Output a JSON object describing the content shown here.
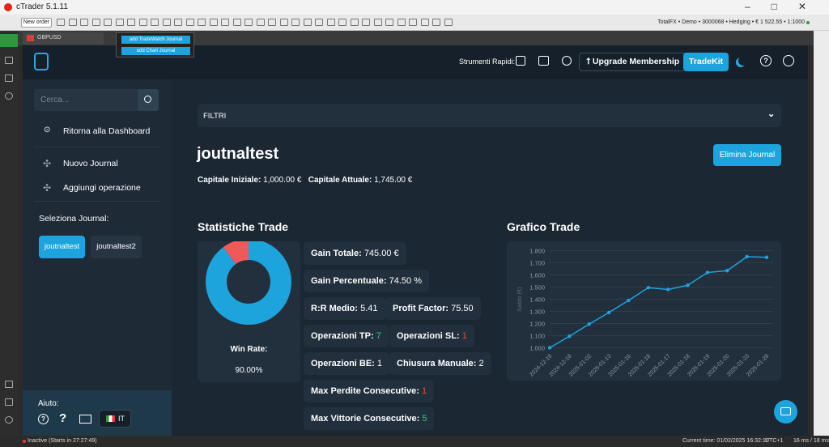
{
  "window": {
    "title": "cTrader 5.1.11"
  },
  "toolbar": {
    "new_order": "New order",
    "account": "TotalFX • Demo • 3000068 • Hedging • € 1 522.55 • 1:1000"
  },
  "tab": {
    "symbol": "GBPUSD"
  },
  "popup": {
    "items": [
      "add TradeWatch Journal",
      "add Chart Journal"
    ]
  },
  "header": {
    "quick_tools": "Strumenti Rapidi:",
    "upgrade": "Upgrade Membership",
    "tradekit": "TradeKit"
  },
  "sidebar": {
    "search": "Cerca...",
    "menu": [
      "Ritorna alla Dashboard",
      "Nuovo Journal",
      "Aggiungi operazione"
    ],
    "select_label": "Seleziona Journal:",
    "journals": [
      "joutnaltest",
      "joutnaltest2"
    ],
    "help": "Aiuto:",
    "language": "IT"
  },
  "main": {
    "filters": "FILTRI",
    "journal_title": "joutnaltest",
    "delete": "Elimina Journal",
    "capital": [
      {
        "label": "Capitale Iniziale:",
        "value": "1,000.00 €"
      },
      {
        "label": "Capitale Attuale:",
        "value": "1,745.00 €"
      }
    ],
    "stats_title": "Statistiche Trade",
    "win_rate": {
      "label": "Win Rate:",
      "value": 90,
      "value_label": "90.00%"
    },
    "stats": [
      {
        "label": "Gain Totale:",
        "value": "745.00 €"
      },
      {
        "label": "Gain Percentuale:",
        "value": "74.50 %"
      },
      {
        "label": "R:R Medio:",
        "value": "5.41"
      },
      {
        "label": "Profit Factor:",
        "value": "75.50"
      },
      {
        "label": "Operazioni TP:",
        "value": "7"
      },
      {
        "label": "Operazioni SL:",
        "value": "1"
      },
      {
        "label": "Operazioni BE:",
        "value": "1"
      },
      {
        "label": "Chiusura Manuale:",
        "value": "2"
      },
      {
        "label": "Max Perdite Consecutive:",
        "value": "1"
      },
      {
        "label": "Max Vittorie Consecutive:",
        "value": "5"
      }
    ]
  },
  "chart_data": {
    "type": "line",
    "title": "Grafico Trade",
    "y_label": "Saldo (€)",
    "categories": [
      "2024-12-18",
      "2024-12-18",
      "2025-01-02",
      "2025-01-13",
      "2025-01-16",
      "2025-01-18",
      "2025-01-17",
      "2025-01-18",
      "2025-01-19",
      "2025-01-20",
      "2025-01-23",
      "2025-01-28"
    ],
    "values": [
      1000,
      1095,
      1195,
      1290,
      1390,
      1495,
      1480,
      1515,
      1620,
      1635,
      1750,
      1745
    ],
    "color": "#1ea4dc",
    "ylim": [
      970,
      1830
    ],
    "yticks": [
      {
        "value": 1000,
        "label": "1.000"
      },
      {
        "value": 1100,
        "label": "1.100"
      },
      {
        "value": 1200,
        "label": "1.200"
      },
      {
        "value": 1300,
        "label": "1.300"
      },
      {
        "value": 1400,
        "label": "1.400"
      },
      {
        "value": 1500,
        "label": "1.500"
      },
      {
        "value": 1600,
        "label": "1.600"
      },
      {
        "value": 1700,
        "label": "1.700"
      },
      {
        "value": 1800,
        "label": "1.800"
      }
    ],
    "grid": true
  },
  "status": {
    "state": "Inactive (Starts in 27:27:49)",
    "time": "Current time: 01/02/2025 16:32:10",
    "tz": "UTC+1",
    "latency": "16 ms / 18 ms"
  }
}
